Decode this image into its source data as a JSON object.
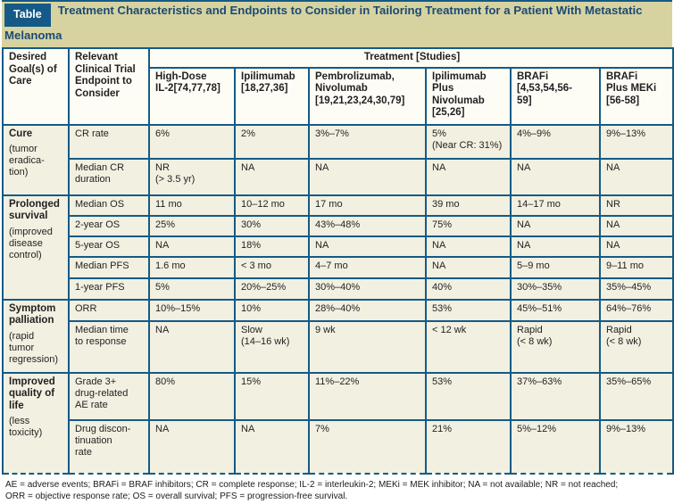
{
  "title": {
    "badge": "Table",
    "text": "Treatment Characteristics and Endpoints to Consider in Tailoring Treatment for a Patient With Metastatic Melanoma"
  },
  "header": {
    "goal_col": "Desired\nGoal(s) of\nCare",
    "endpoint_col": "Relevant\nClinical Trial\nEndpoint to\nConsider",
    "treatment_span": "Treatment [Studies]",
    "treatments": [
      "High-Dose\nIL-2[74,77,78]",
      "Ipilimumab\n[18,27,36]",
      "Pembrolizumab,\nNivolumab\n[19,21,23,24,30,79]",
      "Ipilimumab\nPlus\nNivolumab\n[25,26]",
      "BRAFi\n[4,53,54,56-\n59]",
      "BRAFi\nPlus MEKi\n[56-58]"
    ]
  },
  "sections": [
    {
      "goal": "Cure",
      "qualifier": "(tumor\neradica-\ntion)",
      "rows": [
        {
          "endpoint": "CR rate",
          "values": [
            "6%",
            "2%",
            "3%–7%",
            "5%\n(Near CR: 31%)",
            "4%–9%",
            "9%–13%"
          ]
        },
        {
          "endpoint": "Median CR\nduration",
          "values": [
            "NR\n(> 3.5 yr)",
            "NA",
            "NA",
            "NA",
            "NA",
            "NA"
          ]
        }
      ]
    },
    {
      "goal": "Prolonged\nsurvival",
      "qualifier": "(improved\ndisease\ncontrol)",
      "rows": [
        {
          "endpoint": "Median OS",
          "values": [
            "11 mo",
            "10–12 mo",
            "17 mo",
            "39 mo",
            "14–17 mo",
            "NR"
          ]
        },
        {
          "endpoint": "2-year OS",
          "values": [
            "25%",
            "30%",
            "43%–48%",
            "75%",
            "NA",
            "NA"
          ]
        },
        {
          "endpoint": "5-year OS",
          "values": [
            "NA",
            "18%",
            "NA",
            "NA",
            "NA",
            "NA"
          ]
        },
        {
          "endpoint": "Median PFS",
          "values": [
            "1.6 mo",
            "< 3 mo",
            "4–7 mo",
            "NA",
            "5–9 mo",
            "9–11 mo"
          ]
        },
        {
          "endpoint": "1-year PFS",
          "values": [
            "5%",
            "20%–25%",
            "30%–40%",
            "40%",
            "30%–35%",
            "35%–45%"
          ]
        }
      ]
    },
    {
      "goal": "Symptom\npalliation",
      "qualifier": "(rapid\ntumor\nregression)",
      "rows": [
        {
          "endpoint": "ORR",
          "values": [
            "10%–15%",
            "10%",
            "28%–40%",
            "53%",
            "45%–51%",
            "64%–76%"
          ]
        },
        {
          "endpoint": "Median time\nto response",
          "values": [
            "NA",
            "Slow\n(14–16 wk)",
            "9 wk",
            "< 12 wk",
            "Rapid\n(< 8 wk)",
            "Rapid\n(< 8 wk)"
          ]
        }
      ]
    },
    {
      "goal": "Improved\nquality of\nlife",
      "qualifier": "(less\ntoxicity)",
      "rows": [
        {
          "endpoint": "Grade 3+\ndrug-related\nAE rate",
          "values": [
            "80%",
            "15%",
            "11%–22%",
            "53%",
            "37%–63%",
            "35%–65%"
          ]
        },
        {
          "endpoint": "Drug discon-\ntinuation\nrate",
          "values": [
            "NA",
            "NA",
            "7%",
            "21%",
            "5%–12%",
            "9%–13%"
          ]
        }
      ]
    }
  ],
  "footnote": "AE = adverse events; BRAFi = BRAF inhibitors; CR = complete response; IL-2 = interleukin-2; MEKi = MEK inhibitor; NA = not available; NR = not reached;\nORR = objective response rate; OS = overall survival; PFS = progression-free survival.",
  "colors": {
    "accent_blue": "#155a87",
    "title_text_blue": "#1b4a74",
    "title_bar_khaki": "#d6d3a1",
    "cell_cream": "#f1f0e1",
    "header_cell_white": "#fdfdf6",
    "body_text": "#231f20"
  }
}
